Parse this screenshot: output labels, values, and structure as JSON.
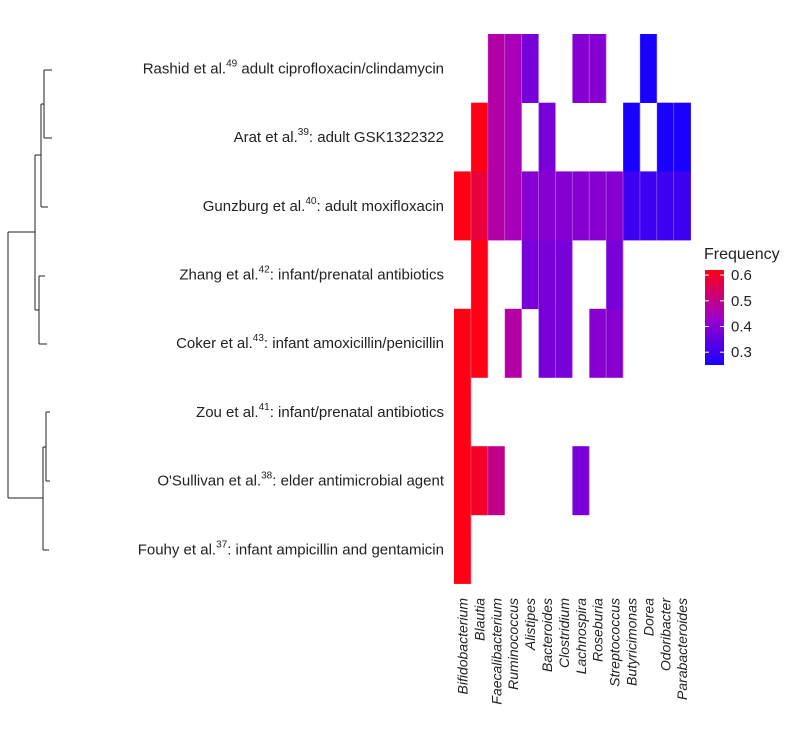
{
  "chart_data": {
    "type": "heatmap",
    "rows": [
      {
        "author": "Rashid et al.",
        "ref": "49",
        "desc": " adult ciprofloxacin/clindamycin"
      },
      {
        "author": "Arat et al.",
        "ref": "39",
        "desc": ": adult GSK1322322"
      },
      {
        "author": "Gunzburg et al.",
        "ref": "40",
        "desc": ": adult moxifloxacin"
      },
      {
        "author": "Zhang et al.",
        "ref": "42",
        "desc": ": infant/prenatal antibiotics"
      },
      {
        "author": "Coker et al.",
        "ref": "43",
        "desc": ": infant amoxicillin/penicillin"
      },
      {
        "author": "Zou et al.",
        "ref": "41",
        "desc": ": infant/prenatal antibiotics"
      },
      {
        "author": "O'Sullivan et al.",
        "ref": "38",
        "desc": ": elder antimicrobial agent"
      },
      {
        "author": "Fouhy et al.",
        "ref": "37",
        "desc": ": infant ampicillin and gentamicin"
      }
    ],
    "columns": [
      "Bifidobacterium",
      "Blautia",
      "Faecalibacterium",
      "Ruminococcus",
      "Alistipes",
      "Bacteroides",
      "Clostridium",
      "Lachnospira",
      "Roseburia",
      "Streptococcus",
      "Butyricimonas",
      "Dorea",
      "Odoribacter",
      "Parabacteroides"
    ],
    "values": [
      [
        null,
        null,
        0.47,
        0.45,
        0.38,
        null,
        null,
        0.4,
        0.4,
        null,
        null,
        0.25,
        null,
        null
      ],
      [
        null,
        0.62,
        0.47,
        0.45,
        null,
        0.38,
        null,
        null,
        null,
        null,
        0.25,
        null,
        0.25,
        0.25
      ],
      [
        0.62,
        0.58,
        0.47,
        0.45,
        0.4,
        0.4,
        0.4,
        0.4,
        0.4,
        0.4,
        0.3,
        0.3,
        0.3,
        0.3
      ],
      [
        null,
        0.62,
        null,
        null,
        0.38,
        0.38,
        0.38,
        null,
        null,
        0.38,
        null,
        null,
        null,
        null
      ],
      [
        0.62,
        0.62,
        null,
        0.47,
        null,
        0.38,
        0.38,
        null,
        0.4,
        0.4,
        null,
        null,
        null,
        null
      ],
      [
        0.62,
        null,
        null,
        null,
        null,
        null,
        null,
        null,
        null,
        null,
        null,
        null,
        null,
        null
      ],
      [
        0.62,
        0.6,
        0.5,
        null,
        null,
        null,
        null,
        0.38,
        null,
        null,
        null,
        null,
        null,
        null
      ],
      [
        0.62,
        null,
        null,
        null,
        null,
        null,
        null,
        null,
        null,
        null,
        null,
        null,
        null,
        null
      ]
    ],
    "legend": {
      "title": "Frequency",
      "ticks": [
        "0.6",
        "0.5",
        "0.4",
        "0.3"
      ],
      "range": [
        0.25,
        0.62
      ],
      "placement": "right"
    },
    "colors": {
      "low": "#1a00ff",
      "mid": "#a000c8",
      "high": "#ff0015"
    },
    "dendrogram": "left"
  }
}
